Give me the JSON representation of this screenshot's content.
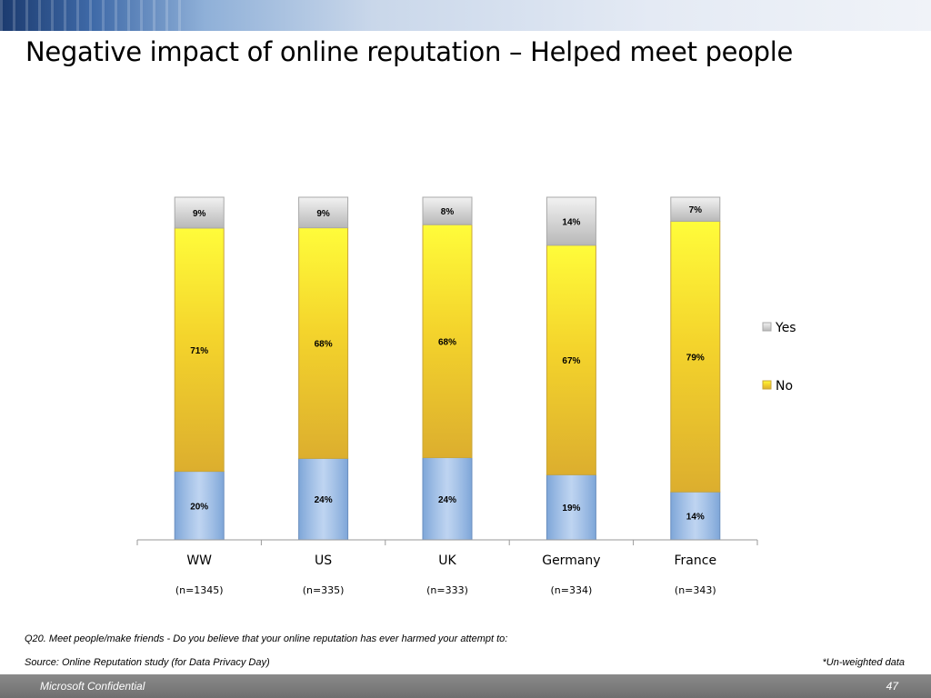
{
  "slide": {
    "title": "Negative impact of online reputation – Helped meet people",
    "question": "Q20. Meet people/make friends - Do you believe that your online reputation has ever harmed your attempt to:",
    "source": "Source: Online Reputation study (for Data Privacy Day)",
    "note": "*Un-weighted data",
    "footer_left": "Microsoft Confidential",
    "page_number": "47"
  },
  "chart_data": {
    "type": "bar",
    "stacked": true,
    "percent_stacked": true,
    "categories": [
      "WW",
      "US",
      "UK",
      "Germany",
      "France"
    ],
    "sample_sizes": [
      "(n=1345)",
      "(n=335)",
      "(n=333)",
      "(n=334)",
      "(n=343)"
    ],
    "series": [
      {
        "name": "",
        "values": [
          20,
          24,
          24,
          19,
          14
        ],
        "labels": [
          "20%",
          "24%",
          "24%",
          "19%",
          "14%"
        ],
        "color": "#8db3e2"
      },
      {
        "name": "No",
        "values": [
          71,
          68,
          68,
          67,
          79
        ],
        "labels": [
          "71%",
          "68%",
          "68%",
          "67%",
          "79%"
        ],
        "color": "#f5dc2a"
      },
      {
        "name": "Yes",
        "values": [
          9,
          9,
          8,
          14,
          7
        ],
        "labels": [
          "9%",
          "9%",
          "8%",
          "14%",
          "7%"
        ],
        "color": "#d0d0d0"
      }
    ],
    "legend": {
      "position": "right",
      "entries": [
        "Yes",
        "No"
      ]
    },
    "grid": false
  }
}
